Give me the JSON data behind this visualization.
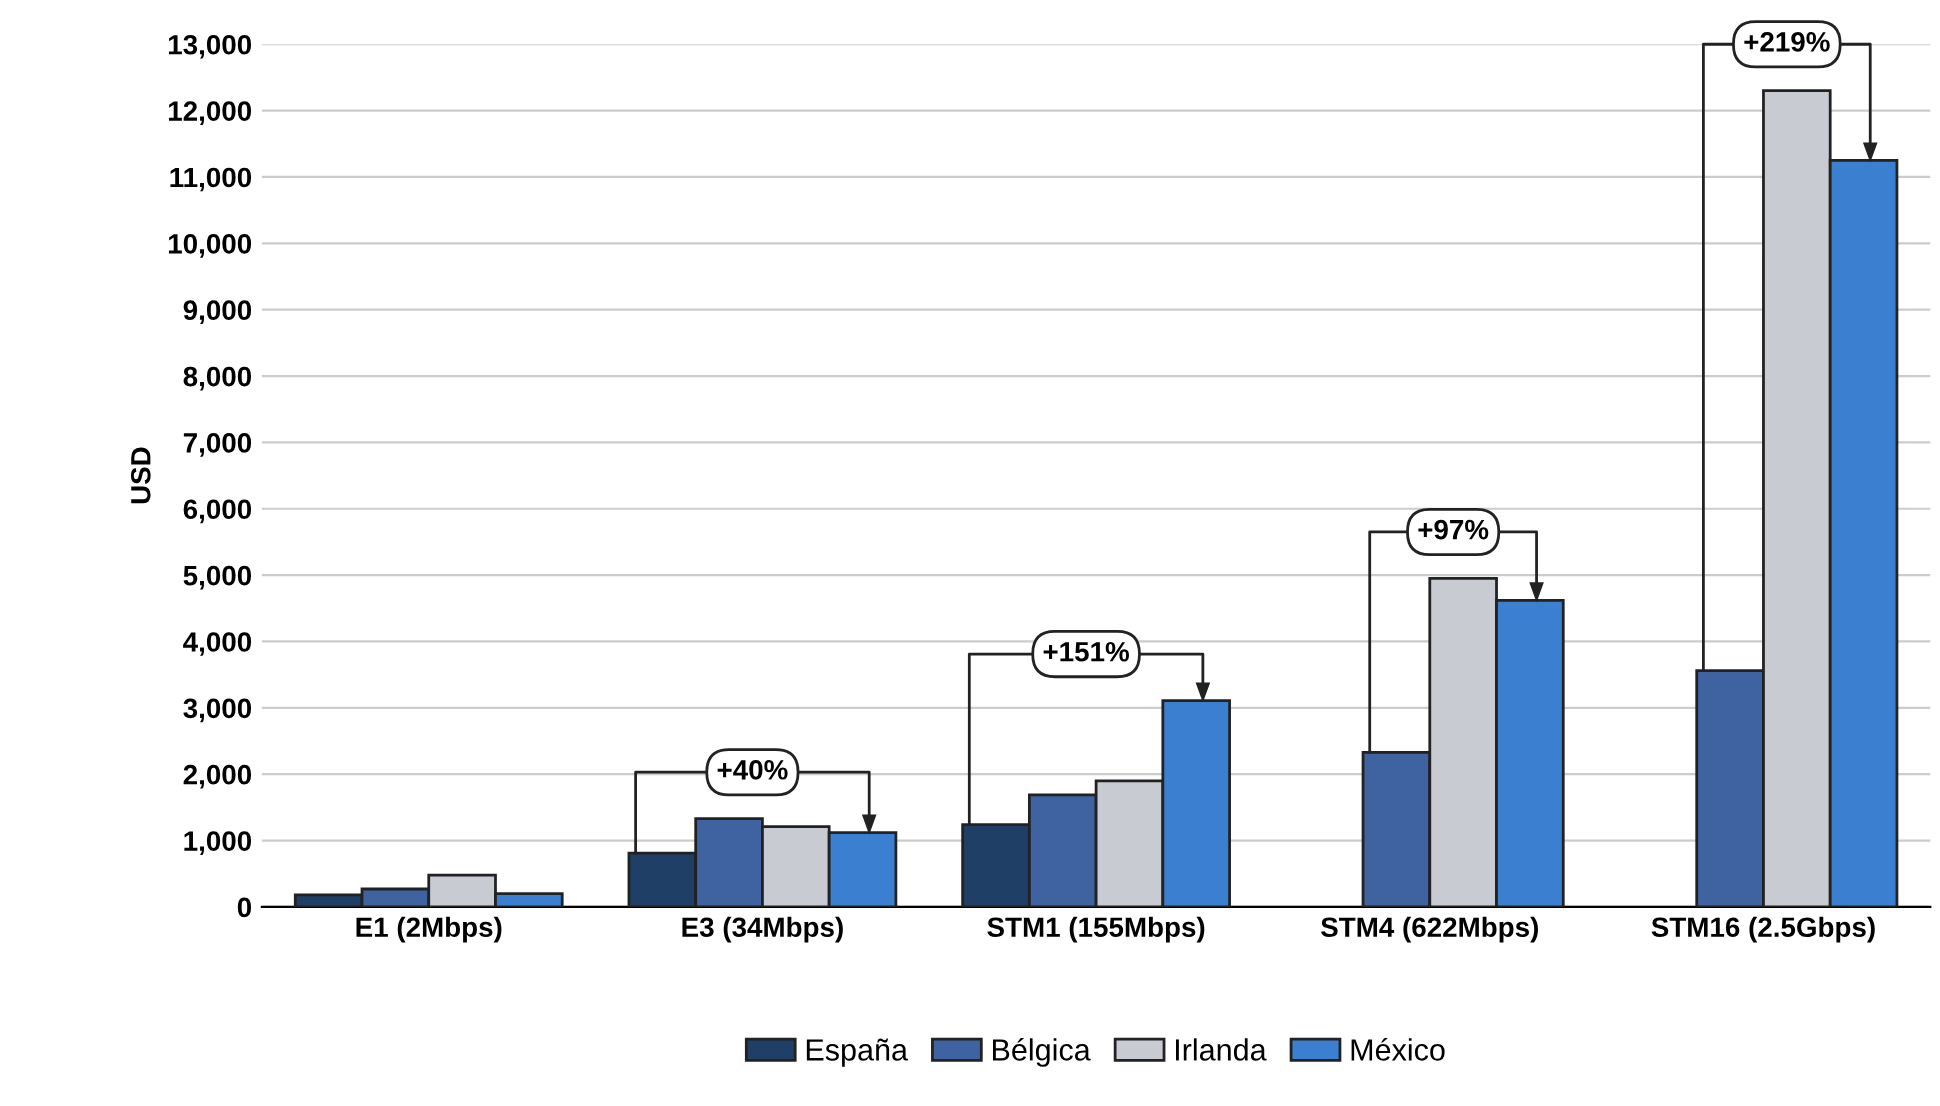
{
  "chart_data": {
    "type": "bar",
    "ylabel": "USD",
    "categories": [
      "E1 (2Mbps)",
      "E3 (34Mbps)",
      "STM1 (155Mbps)",
      "STM4 (622Mbps)",
      "STM16 (2.5Gbps)"
    ],
    "series": [
      {
        "name": "España",
        "color": "#1f3f66",
        "values": [
          180,
          810,
          1240,
          null,
          null
        ]
      },
      {
        "name": "Bélgica",
        "color": "#3e63a0",
        "values": [
          270,
          1330,
          1690,
          2330,
          3560
        ]
      },
      {
        "name": "Irlanda",
        "color": "#c8cbd2",
        "values": [
          480,
          1210,
          1900,
          4950,
          12300
        ]
      },
      {
        "name": "México",
        "color": "#3a7fd0",
        "values": [
          200,
          1120,
          3110,
          4620,
          11250
        ]
      }
    ],
    "ylim": [
      0,
      13000
    ],
    "yticks": [
      {
        "value": 0,
        "label": "0"
      },
      {
        "value": 1000,
        "label": "1,000"
      },
      {
        "value": 2000,
        "label": "2,000"
      },
      {
        "value": 3000,
        "label": "3,000"
      },
      {
        "value": 4000,
        "label": "4,000"
      },
      {
        "value": 5000,
        "label": "5,000"
      },
      {
        "value": 6000,
        "label": "6,000"
      },
      {
        "value": 7000,
        "label": "7,000"
      },
      {
        "value": 8000,
        "label": "8,000"
      },
      {
        "value": 9000,
        "label": "9,000"
      },
      {
        "value": 10000,
        "label": "10,000"
      },
      {
        "value": 11000,
        "label": "11,000"
      },
      {
        "value": 12000,
        "label": "12,000"
      },
      {
        "value": 13000,
        "label": "13,000"
      }
    ],
    "grid": "y",
    "legend": "bottom",
    "annotations": [
      "+40%",
      "+151%",
      "+97%",
      "+219%"
    ]
  }
}
